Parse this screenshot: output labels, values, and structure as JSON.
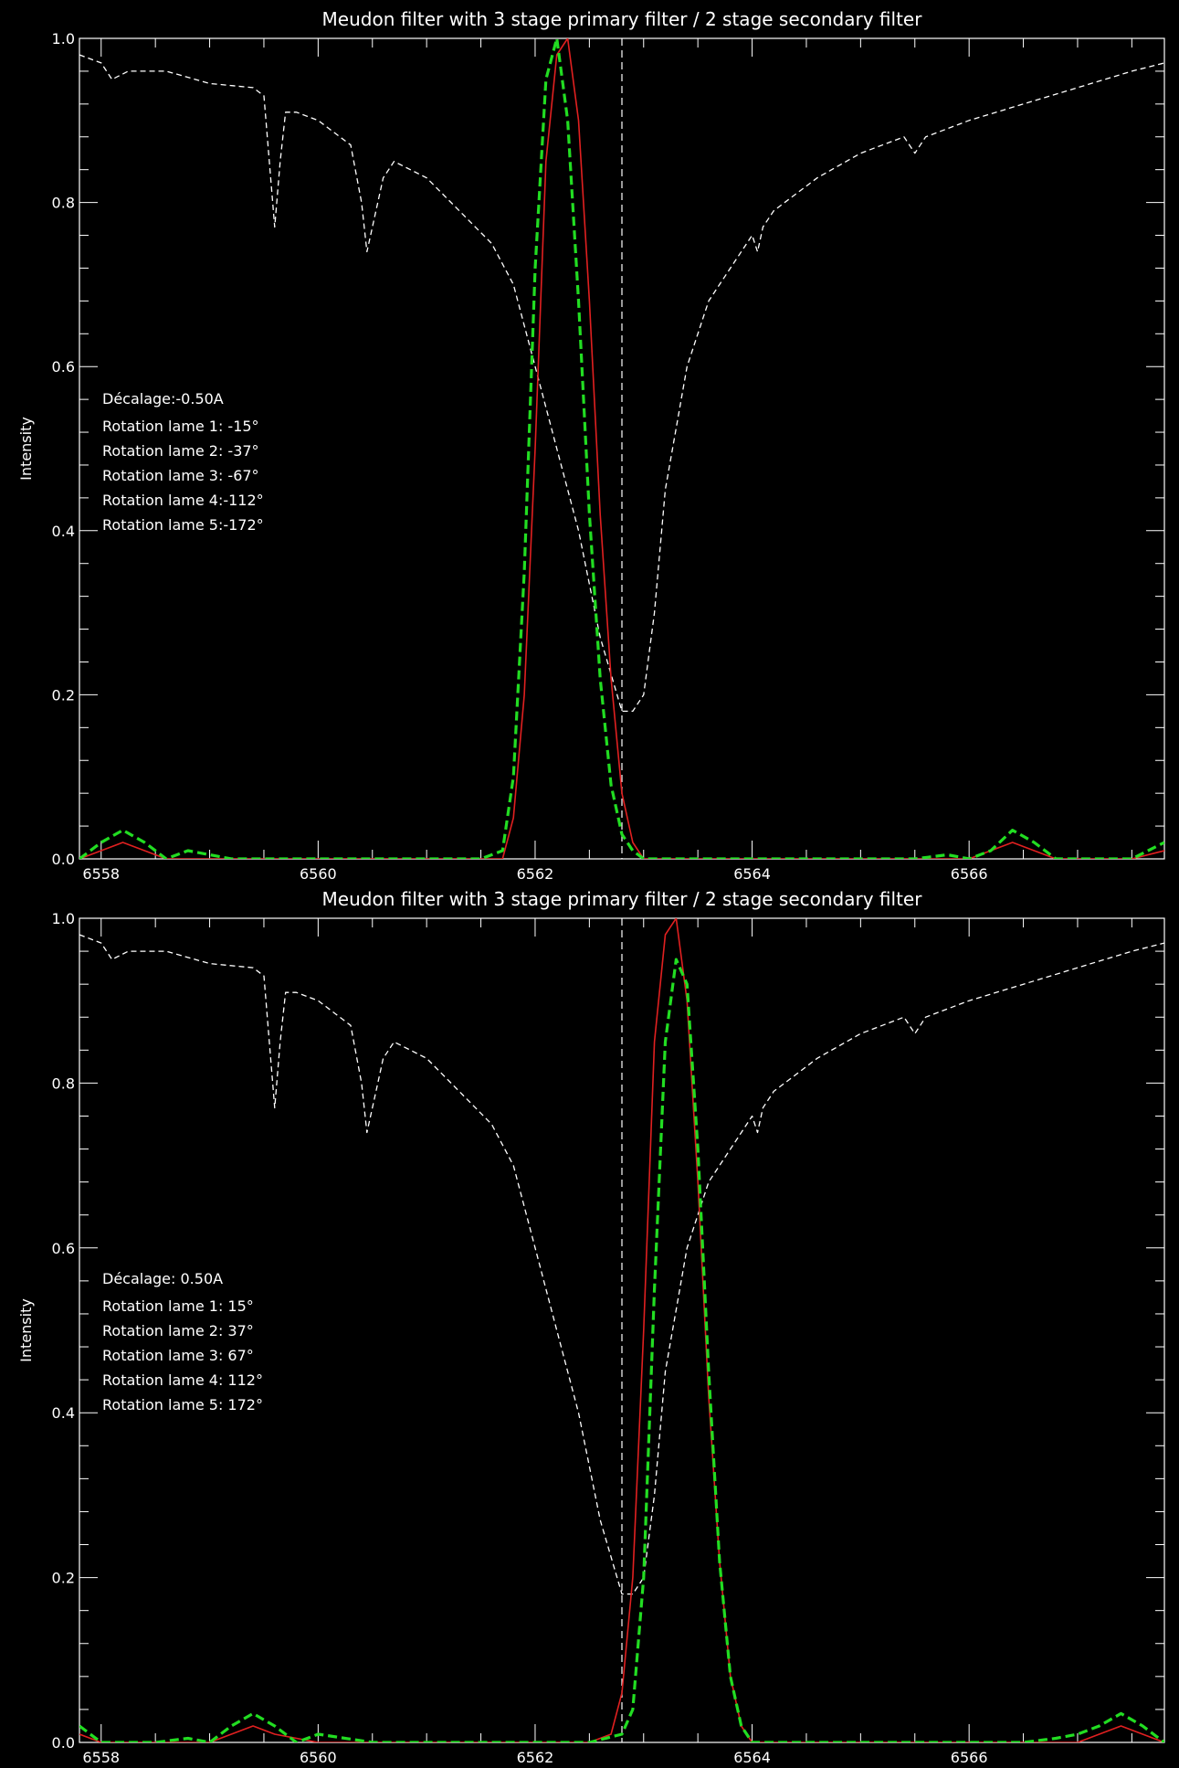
{
  "chart_data": [
    {
      "type": "line",
      "title": "Meudon filter with 3 stage primary filter / 2 stage secondary filter",
      "xlabel": "",
      "ylabel": "Intensity",
      "xlim": [
        6557.8,
        6567.8
      ],
      "ylim": [
        0.0,
        1.0
      ],
      "x_ticks": [
        6558,
        6560,
        6562,
        6564,
        6566
      ],
      "x_tick_labels": [
        "6558",
        "6560",
        "6562",
        "6564",
        "6566"
      ],
      "y_ticks": [
        0.0,
        0.2,
        0.4,
        0.6,
        0.8,
        1.0
      ],
      "y_tick_labels": [
        "0.0",
        "0.2",
        "0.4",
        "0.6",
        "0.8",
        "1.0"
      ],
      "reference_line_x": 6562.8,
      "annotations": [
        "Décalage:-0.50A",
        "Rotation lame 1: -15°",
        "Rotation lame 2: -37°",
        "Rotation lame 3: -67°",
        "Rotation lame 4:-112°",
        "Rotation lame 5:-172°"
      ],
      "series": [
        {
          "color": "#ffffff",
          "style": "dashed-thin",
          "x": [
            6557.8,
            6558.0,
            6558.1,
            6558.25,
            6558.6,
            6559.0,
            6559.4,
            6559.5,
            6559.55,
            6559.6,
            6559.65,
            6559.7,
            6559.8,
            6560.0,
            6560.3,
            6560.4,
            6560.45,
            6560.55,
            6560.6,
            6560.65,
            6560.7,
            6561.0,
            6561.3,
            6561.6,
            6561.8,
            6562.0,
            6562.2,
            6562.4,
            6562.6,
            6562.8,
            6562.9,
            6563.0,
            6563.1,
            6563.2,
            6563.4,
            6563.6,
            6563.8,
            6564.0,
            6564.05,
            6564.1,
            6564.2,
            6564.4,
            6564.6,
            6565.0,
            6565.4,
            6565.5,
            6565.55,
            6565.6,
            6566.0,
            6566.5,
            6567.0,
            6567.5,
            6567.8
          ],
          "values": [
            0.98,
            0.97,
            0.95,
            0.96,
            0.96,
            0.945,
            0.94,
            0.93,
            0.85,
            0.77,
            0.85,
            0.91,
            0.91,
            0.9,
            0.87,
            0.8,
            0.74,
            0.8,
            0.83,
            0.84,
            0.85,
            0.83,
            0.79,
            0.75,
            0.7,
            0.6,
            0.5,
            0.4,
            0.27,
            0.18,
            0.18,
            0.2,
            0.3,
            0.45,
            0.6,
            0.68,
            0.72,
            0.76,
            0.74,
            0.77,
            0.79,
            0.81,
            0.83,
            0.86,
            0.88,
            0.86,
            0.87,
            0.88,
            0.9,
            0.92,
            0.94,
            0.96,
            0.97
          ]
        },
        {
          "color": "#e02020",
          "style": "solid",
          "x": [
            6557.8,
            6558.0,
            6558.2,
            6558.4,
            6558.6,
            6559.0,
            6559.5,
            6560.0,
            6560.5,
            6561.0,
            6561.5,
            6561.7,
            6561.8,
            6561.9,
            6562.0,
            6562.1,
            6562.2,
            6562.3,
            6562.4,
            6562.5,
            6562.6,
            6562.7,
            6562.8,
            6562.9,
            6563.0,
            6563.5,
            6564.0,
            6564.5,
            6565.0,
            6565.5,
            6566.0,
            6566.2,
            6566.4,
            6566.6,
            6566.8,
            6567.0,
            6567.5,
            6567.8
          ],
          "values": [
            0.0,
            0.01,
            0.02,
            0.01,
            0.0,
            0.0,
            0.0,
            0.0,
            0.0,
            0.0,
            0.0,
            0.0,
            0.05,
            0.2,
            0.5,
            0.85,
            0.98,
            1.0,
            0.9,
            0.68,
            0.42,
            0.22,
            0.08,
            0.02,
            0.0,
            0.0,
            0.0,
            0.0,
            0.0,
            0.0,
            0.0,
            0.01,
            0.02,
            0.01,
            0.0,
            0.0,
            0.0,
            0.01
          ]
        },
        {
          "color": "#22dd22",
          "style": "dashed-thick",
          "x": [
            6557.8,
            6558.0,
            6558.2,
            6558.4,
            6558.6,
            6558.8,
            6559.0,
            6559.2,
            6559.5,
            6560.0,
            6560.5,
            6561.0,
            6561.5,
            6561.7,
            6561.8,
            6561.9,
            6562.0,
            6562.1,
            6562.2,
            6562.3,
            6562.4,
            6562.5,
            6562.6,
            6562.7,
            6562.8,
            6562.9,
            6563.0,
            6563.5,
            6564.0,
            6564.5,
            6565.0,
            6565.5,
            6565.8,
            6566.0,
            6566.2,
            6566.4,
            6566.6,
            6566.8,
            6567.0,
            6567.5,
            6567.8
          ],
          "values": [
            0.0,
            0.02,
            0.035,
            0.02,
            0.0,
            0.01,
            0.005,
            0.0,
            0.0,
            0.0,
            0.0,
            0.0,
            0.0,
            0.01,
            0.1,
            0.35,
            0.72,
            0.95,
            1.0,
            0.9,
            0.68,
            0.42,
            0.22,
            0.09,
            0.03,
            0.01,
            0.0,
            0.0,
            0.0,
            0.0,
            0.0,
            0.0,
            0.005,
            0.0,
            0.01,
            0.035,
            0.02,
            0.0,
            0.0,
            0.0,
            0.02
          ]
        }
      ]
    },
    {
      "type": "line",
      "title": "Meudon filter with 3 stage primary filter / 2 stage secondary filter",
      "xlabel": "",
      "ylabel": "Intensity",
      "xlim": [
        6557.8,
        6567.8
      ],
      "ylim": [
        0.0,
        1.0
      ],
      "x_ticks": [
        6558,
        6560,
        6562,
        6564,
        6566
      ],
      "x_tick_labels": [
        "6558",
        "6560",
        "6562",
        "6564",
        "6566"
      ],
      "y_ticks": [
        0.0,
        0.2,
        0.4,
        0.6,
        0.8,
        1.0
      ],
      "y_tick_labels": [
        "0.0",
        "0.2",
        "0.4",
        "0.6",
        "0.8",
        "1.0"
      ],
      "reference_line_x": 6562.8,
      "annotations": [
        "Décalage: 0.50A",
        "Rotation lame 1:  15°",
        "Rotation lame 2:  37°",
        "Rotation lame 3:  67°",
        "Rotation lame 4: 112°",
        "Rotation lame 5: 172°"
      ],
      "series": [
        {
          "color": "#ffffff",
          "style": "dashed-thin",
          "x": [
            6557.8,
            6558.0,
            6558.1,
            6558.25,
            6558.6,
            6559.0,
            6559.4,
            6559.5,
            6559.55,
            6559.6,
            6559.65,
            6559.7,
            6559.8,
            6560.0,
            6560.3,
            6560.4,
            6560.45,
            6560.55,
            6560.6,
            6560.65,
            6560.7,
            6561.0,
            6561.3,
            6561.6,
            6561.8,
            6562.0,
            6562.2,
            6562.4,
            6562.6,
            6562.8,
            6562.9,
            6563.0,
            6563.1,
            6563.2,
            6563.4,
            6563.6,
            6563.8,
            6564.0,
            6564.05,
            6564.1,
            6564.2,
            6564.4,
            6564.6,
            6565.0,
            6565.4,
            6565.5,
            6565.55,
            6565.6,
            6566.0,
            6566.5,
            6567.0,
            6567.5,
            6567.8
          ],
          "values": [
            0.98,
            0.97,
            0.95,
            0.96,
            0.96,
            0.945,
            0.94,
            0.93,
            0.85,
            0.77,
            0.85,
            0.91,
            0.91,
            0.9,
            0.87,
            0.8,
            0.74,
            0.8,
            0.83,
            0.84,
            0.85,
            0.83,
            0.79,
            0.75,
            0.7,
            0.6,
            0.5,
            0.4,
            0.27,
            0.18,
            0.18,
            0.2,
            0.3,
            0.45,
            0.6,
            0.68,
            0.72,
            0.76,
            0.74,
            0.77,
            0.79,
            0.81,
            0.83,
            0.86,
            0.88,
            0.86,
            0.87,
            0.88,
            0.9,
            0.92,
            0.94,
            0.96,
            0.97
          ]
        },
        {
          "color": "#e02020",
          "style": "solid",
          "x": [
            6557.8,
            6558.0,
            6558.5,
            6559.0,
            6559.2,
            6559.4,
            6559.6,
            6560.0,
            6560.5,
            6561.0,
            6561.5,
            6562.0,
            6562.5,
            6562.7,
            6562.8,
            6562.9,
            6563.0,
            6563.1,
            6563.2,
            6563.3,
            6563.4,
            6563.5,
            6563.6,
            6563.7,
            6563.8,
            6563.9,
            6564.0,
            6564.5,
            6565.0,
            6565.5,
            6566.0,
            6566.5,
            6567.0,
            6567.2,
            6567.4,
            6567.6,
            6567.8
          ],
          "values": [
            0.01,
            0.0,
            0.0,
            0.0,
            0.01,
            0.02,
            0.01,
            0.0,
            0.0,
            0.0,
            0.0,
            0.0,
            0.0,
            0.01,
            0.06,
            0.2,
            0.5,
            0.85,
            0.98,
            1.0,
            0.9,
            0.68,
            0.42,
            0.22,
            0.08,
            0.02,
            0.0,
            0.0,
            0.0,
            0.0,
            0.0,
            0.0,
            0.0,
            0.01,
            0.02,
            0.01,
            0.0
          ]
        },
        {
          "color": "#22dd22",
          "style": "dashed-thick",
          "x": [
            6557.8,
            6558.0,
            6558.5,
            6558.8,
            6559.0,
            6559.2,
            6559.4,
            6559.6,
            6559.8,
            6560.0,
            6560.5,
            6561.0,
            6561.5,
            6562.0,
            6562.5,
            6562.8,
            6562.9,
            6563.0,
            6563.1,
            6563.2,
            6563.3,
            6563.4,
            6563.5,
            6563.6,
            6563.7,
            6563.8,
            6563.9,
            6564.0,
            6564.5,
            6565.0,
            6565.5,
            6566.0,
            6566.5,
            6566.8,
            6567.0,
            6567.2,
            6567.4,
            6567.6,
            6567.8
          ],
          "values": [
            0.02,
            0.0,
            0.0,
            0.005,
            0.0,
            0.02,
            0.035,
            0.02,
            0.0,
            0.01,
            0.0,
            0.0,
            0.0,
            0.0,
            0.0,
            0.01,
            0.04,
            0.2,
            0.55,
            0.85,
            0.95,
            0.92,
            0.72,
            0.45,
            0.22,
            0.08,
            0.02,
            0.0,
            0.0,
            0.0,
            0.0,
            0.0,
            0.0,
            0.005,
            0.01,
            0.02,
            0.035,
            0.02,
            0.0
          ]
        }
      ]
    }
  ]
}
